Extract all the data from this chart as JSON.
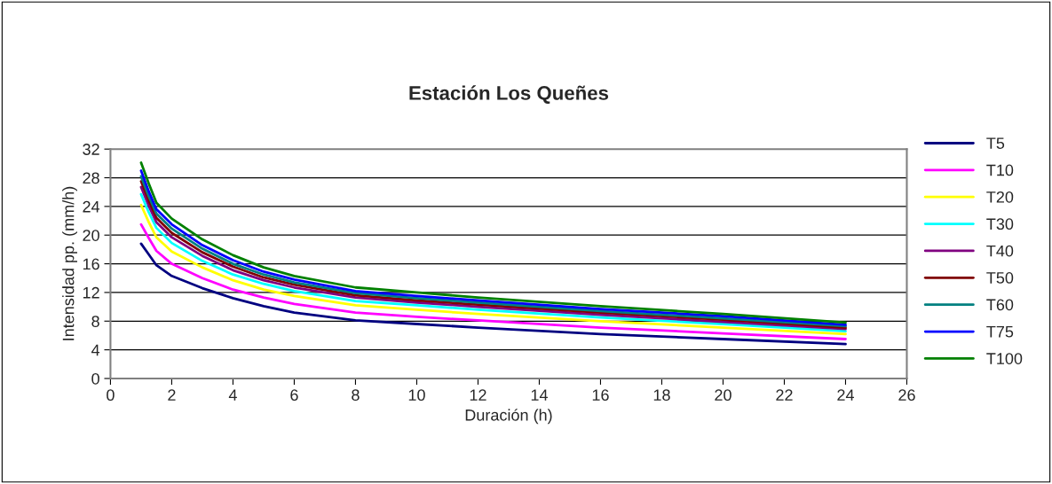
{
  "chart_data": {
    "type": "line",
    "title": "Estación Los Queñes",
    "xlabel": "Duración (h)",
    "ylabel": "Intensidad pp. (mm/h)",
    "x": [
      1,
      1.25,
      1.5,
      2,
      3,
      4,
      5,
      6,
      8,
      10,
      12,
      16,
      20,
      24
    ],
    "xlim": [
      0,
      26
    ],
    "xticks": [
      0,
      2,
      4,
      6,
      8,
      10,
      12,
      14,
      16,
      18,
      20,
      22,
      24,
      26
    ],
    "ylim": [
      0,
      32
    ],
    "yticks": [
      0,
      4,
      8,
      12,
      16,
      20,
      24,
      28,
      32
    ],
    "grid": "y",
    "legend": "right",
    "marker": "none",
    "line_style": "solid",
    "series": [
      {
        "name": "T5",
        "color": "#000080",
        "values": [
          18.8,
          17.3,
          15.8,
          14.3,
          12.6,
          11.2,
          10.1,
          9.2,
          8.1,
          7.6,
          7.1,
          6.2,
          5.5,
          4.8
        ]
      },
      {
        "name": "T10",
        "color": "#ff00ff",
        "values": [
          21.5,
          19.6,
          17.8,
          16.0,
          14.0,
          12.4,
          11.3,
          10.4,
          9.2,
          8.6,
          8.1,
          7.1,
          6.3,
          5.5
        ]
      },
      {
        "name": "T20",
        "color": "#ffff00",
        "values": [
          24.2,
          21.8,
          19.7,
          17.7,
          15.5,
          13.7,
          12.4,
          11.5,
          10.2,
          9.6,
          9.0,
          8.0,
          7.1,
          6.2
        ]
      },
      {
        "name": "T30",
        "color": "#00ffff",
        "values": [
          25.7,
          23.2,
          21.0,
          18.9,
          16.4,
          14.5,
          13.2,
          12.2,
          10.8,
          10.2,
          9.6,
          8.5,
          7.6,
          6.6
        ]
      },
      {
        "name": "T40",
        "color": "#800080",
        "values": [
          26.7,
          24.1,
          21.8,
          19.7,
          17.1,
          15.1,
          13.7,
          12.7,
          11.3,
          10.6,
          10.0,
          8.9,
          7.9,
          6.9
        ]
      },
      {
        "name": "T50",
        "color": "#800000",
        "values": [
          27.5,
          24.8,
          22.4,
          20.3,
          17.6,
          15.6,
          14.1,
          13.1,
          11.6,
          10.9,
          10.3,
          9.2,
          8.2,
          7.1
        ]
      },
      {
        "name": "T60",
        "color": "#008080",
        "values": [
          28.2,
          25.4,
          23.0,
          20.9,
          18.1,
          16.0,
          14.5,
          13.4,
          11.9,
          11.2,
          10.6,
          9.4,
          8.4,
          7.3
        ]
      },
      {
        "name": "T75",
        "color": "#0000ff",
        "values": [
          29.0,
          26.1,
          23.6,
          21.5,
          18.6,
          16.5,
          14.9,
          13.8,
          12.2,
          11.5,
          10.9,
          9.7,
          8.7,
          7.5
        ]
      },
      {
        "name": "T100",
        "color": "#008000",
        "values": [
          30.1,
          27.2,
          24.5,
          22.3,
          19.4,
          17.2,
          15.5,
          14.3,
          12.7,
          12.0,
          11.3,
          10.1,
          9.0,
          7.8
        ]
      }
    ]
  }
}
